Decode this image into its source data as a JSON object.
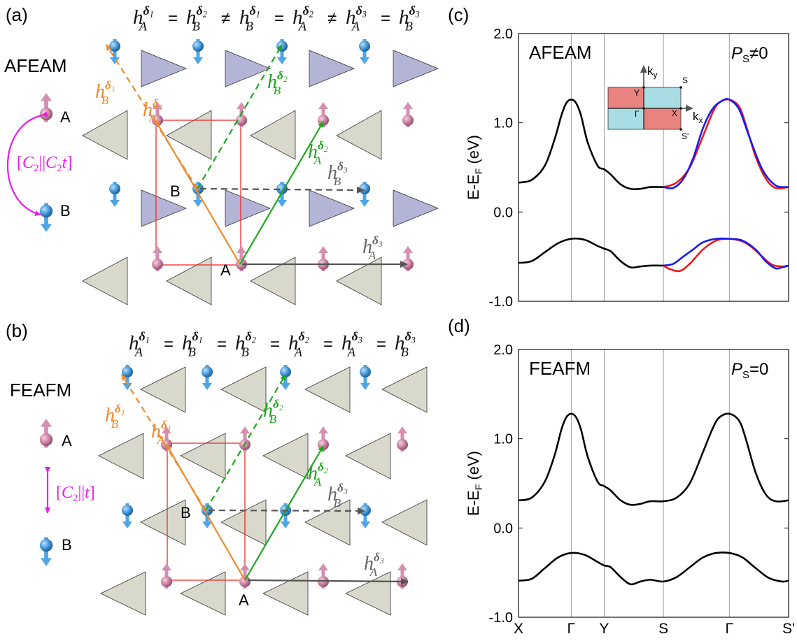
{
  "panel_labels": {
    "a": "(a)",
    "b": "(b)",
    "c": "(c)",
    "d": "(d)"
  },
  "panel_a": {
    "equation": [
      {
        "sub": "A",
        "sup": "1",
        "op": "="
      },
      {
        "sub": "B",
        "sup": "2",
        "op": "≠"
      },
      {
        "sub": "B",
        "sup": "1",
        "op": "="
      },
      {
        "sub": "A",
        "sup": "2",
        "op": "≠"
      },
      {
        "sub": "A",
        "sup": "3",
        "op": "="
      },
      {
        "sub": "B",
        "sup": "3",
        "op": ""
      }
    ],
    "name": "AFEAM",
    "site_a": "A",
    "site_b": "B",
    "symmetry": "[C2||C2t]",
    "symmetry_parts": {
      "open": "[",
      "c1": "C",
      "s1": "2",
      "bars": "||",
      "c2": "C",
      "s2": "2",
      "t": "t",
      "close": "]"
    },
    "lattice_site_a": "A",
    "lattice_site_b": "B"
  },
  "panel_b": {
    "equation": [
      {
        "sub": "A",
        "sup": "1",
        "op": "="
      },
      {
        "sub": "B",
        "sup": "1",
        "op": "="
      },
      {
        "sub": "B",
        "sup": "2",
        "op": "="
      },
      {
        "sub": "A",
        "sup": "2",
        "op": "="
      },
      {
        "sub": "A",
        "sup": "3",
        "op": "="
      },
      {
        "sub": "B",
        "sup": "3",
        "op": ""
      }
    ],
    "name": "FEAFM",
    "site_a": "A",
    "site_b": "B",
    "symmetry": "[C2||t]",
    "symmetry_parts": {
      "open": "[",
      "c1": "C",
      "s1": "2",
      "bars": "||",
      "t": "t",
      "close": "]"
    },
    "lattice_site_a": "A",
    "lattice_site_b": "B"
  },
  "hopping_labels": {
    "h": "h",
    "delta": "δ",
    "b1": {
      "sub": "B",
      "sup": "1"
    },
    "a1": {
      "sub": "A",
      "sup": "1"
    },
    "b2": {
      "sub": "B",
      "sup": "2"
    },
    "a2": {
      "sub": "A",
      "sup": "2"
    },
    "b3": {
      "sub": "B",
      "sup": "3"
    },
    "a3": {
      "sub": "A",
      "sup": "3"
    }
  },
  "colors": {
    "orange": "#f08a2c",
    "green": "#1ea81e",
    "gray_arrow": "#555555",
    "magenta": "#e81ee8",
    "red_cell": "#ee2b2b",
    "spin_up": "#c77a9c",
    "spin_down": "#3b8fd0",
    "triangle_purple": "#b4b4d6",
    "triangle_beige": "#d8d8cc",
    "band_red": "#ee1a1a",
    "band_blue": "#1a1aee",
    "bz_red": "#e8837f",
    "bz_cyan": "#a8dde4"
  },
  "chart_data": [
    {
      "type": "line",
      "panel": "(c)",
      "phase_label": "AFEAM",
      "polarization_label": {
        "p": "P",
        "sub": "S",
        "rest": "≠0"
      },
      "ylabel": {
        "main": "E-E",
        "sub": "F",
        "unit": " (eV)"
      },
      "ylim": [
        -1.0,
        2.0
      ],
      "yticks": [
        "2.0",
        "1.0",
        "0.0",
        "-1.0"
      ],
      "ytick_values": [
        2.0,
        1.0,
        0.0,
        -1.0
      ],
      "path_positions": [
        0,
        1.6,
        2.6,
        4.4,
        6.4,
        8.2
      ],
      "kpoint_labels": [],
      "inset": {
        "k_y": "k",
        "k_y_sub": "y",
        "k_x": "k",
        "k_x_sub": "x",
        "points": {
          "S": "S",
          "Y": "Y",
          "Gamma": "Γ",
          "X": "X",
          "S_prime": "S'"
        }
      },
      "series": [
        {
          "name": "upper band (spin-degenerate)",
          "color": "#000000",
          "x": [
            0,
            0.4,
            0.8,
            1.1,
            1.3,
            1.45,
            1.6,
            1.75,
            1.9,
            2.1,
            2.4,
            2.6,
            2.8,
            3.1,
            3.4,
            3.7,
            4.0,
            4.4
          ],
          "y": [
            0.33,
            0.36,
            0.52,
            0.82,
            1.08,
            1.22,
            1.26,
            1.22,
            1.08,
            0.78,
            0.52,
            0.48,
            0.42,
            0.31,
            0.26,
            0.26,
            0.28,
            0.28
          ]
        },
        {
          "name": "lower band (spin-degenerate)",
          "color": "#000000",
          "x": [
            0,
            0.4,
            0.8,
            1.2,
            1.6,
            2.0,
            2.4,
            2.6,
            2.8,
            3.1,
            3.4,
            3.7,
            4.0,
            4.4
          ],
          "y": [
            -0.57,
            -0.55,
            -0.45,
            -0.35,
            -0.3,
            -0.31,
            -0.38,
            -0.41,
            -0.44,
            -0.55,
            -0.62,
            -0.61,
            -0.6,
            -0.6
          ]
        },
        {
          "name": "upper band spin-up",
          "color": "#ee1a1a",
          "x": [
            4.4,
            4.8,
            5.2,
            5.6,
            5.9,
            6.1,
            6.4,
            6.7,
            6.9,
            7.2,
            7.5,
            7.8,
            8.2
          ],
          "y": [
            0.28,
            0.33,
            0.5,
            0.85,
            1.12,
            1.23,
            1.26,
            1.18,
            0.98,
            0.62,
            0.38,
            0.27,
            0.28
          ]
        },
        {
          "name": "upper band spin-down",
          "color": "#1a1aee",
          "x": [
            4.4,
            4.7,
            5.0,
            5.3,
            5.6,
            5.9,
            6.2,
            6.4,
            6.7,
            7.0,
            7.4,
            7.8,
            8.2
          ],
          "y": [
            0.28,
            0.27,
            0.37,
            0.6,
            0.94,
            1.16,
            1.25,
            1.26,
            1.15,
            0.85,
            0.48,
            0.3,
            0.28
          ]
        },
        {
          "name": "lower band spin-up",
          "color": "#ee1a1a",
          "x": [
            4.4,
            4.6,
            4.9,
            5.2,
            5.6,
            6.0,
            6.4,
            6.8,
            7.1,
            7.4,
            7.7,
            8.0,
            8.2
          ],
          "y": [
            -0.6,
            -0.64,
            -0.66,
            -0.58,
            -0.42,
            -0.32,
            -0.3,
            -0.33,
            -0.4,
            -0.5,
            -0.59,
            -0.61,
            -0.6
          ]
        },
        {
          "name": "lower band spin-down",
          "color": "#1a1aee",
          "x": [
            4.4,
            4.7,
            5.0,
            5.3,
            5.6,
            6.0,
            6.4,
            6.8,
            7.2,
            7.5,
            7.8,
            8.0,
            8.2
          ],
          "y": [
            -0.6,
            -0.58,
            -0.5,
            -0.42,
            -0.34,
            -0.3,
            -0.3,
            -0.32,
            -0.42,
            -0.55,
            -0.63,
            -0.62,
            -0.6
          ]
        }
      ]
    },
    {
      "type": "line",
      "panel": "(d)",
      "phase_label": "FEAFM",
      "polarization_label": {
        "p": "P",
        "sub": "S",
        "rest": "=0"
      },
      "ylabel": {
        "main": "E-E",
        "sub": "F",
        "unit": " (eV)"
      },
      "ylim": [
        -1.0,
        2.0
      ],
      "yticks": [
        "2.0",
        "1.0",
        "0.0",
        "-1.0"
      ],
      "ytick_values": [
        2.0,
        1.0,
        0.0,
        -1.0
      ],
      "path_positions": [
        0,
        1.6,
        2.6,
        4.4,
        6.4,
        8.2
      ],
      "kpoint_labels": [
        "X",
        "Γ",
        "Y",
        "S",
        "Γ",
        "S'"
      ],
      "series": [
        {
          "name": "upper band",
          "color": "#000000",
          "x": [
            0,
            0.4,
            0.8,
            1.1,
            1.3,
            1.45,
            1.6,
            1.75,
            1.9,
            2.1,
            2.4,
            2.6,
            2.8,
            3.1,
            3.4,
            3.7,
            4.0,
            4.4,
            4.8,
            5.2,
            5.6,
            5.9,
            6.1,
            6.4,
            6.7,
            6.9,
            7.2,
            7.5,
            7.8,
            8.2
          ],
          "y": [
            0.31,
            0.34,
            0.52,
            0.82,
            1.1,
            1.24,
            1.28,
            1.24,
            1.1,
            0.8,
            0.52,
            0.47,
            0.42,
            0.31,
            0.26,
            0.27,
            0.3,
            0.3,
            0.34,
            0.5,
            0.85,
            1.12,
            1.24,
            1.28,
            1.2,
            1.0,
            0.62,
            0.38,
            0.3,
            0.31
          ]
        },
        {
          "name": "lower band",
          "color": "#000000",
          "x": [
            0,
            0.4,
            0.8,
            1.2,
            1.6,
            2.0,
            2.4,
            2.6,
            2.8,
            3.1,
            3.4,
            3.7,
            4.0,
            4.4,
            4.8,
            5.2,
            5.6,
            6.0,
            6.4,
            6.8,
            7.2,
            7.6,
            8.0,
            8.2
          ],
          "y": [
            -0.59,
            -0.57,
            -0.45,
            -0.33,
            -0.28,
            -0.3,
            -0.38,
            -0.42,
            -0.44,
            -0.55,
            -0.63,
            -0.6,
            -0.58,
            -0.6,
            -0.55,
            -0.44,
            -0.33,
            -0.28,
            -0.28,
            -0.33,
            -0.45,
            -0.56,
            -0.6,
            -0.59
          ]
        }
      ]
    }
  ]
}
